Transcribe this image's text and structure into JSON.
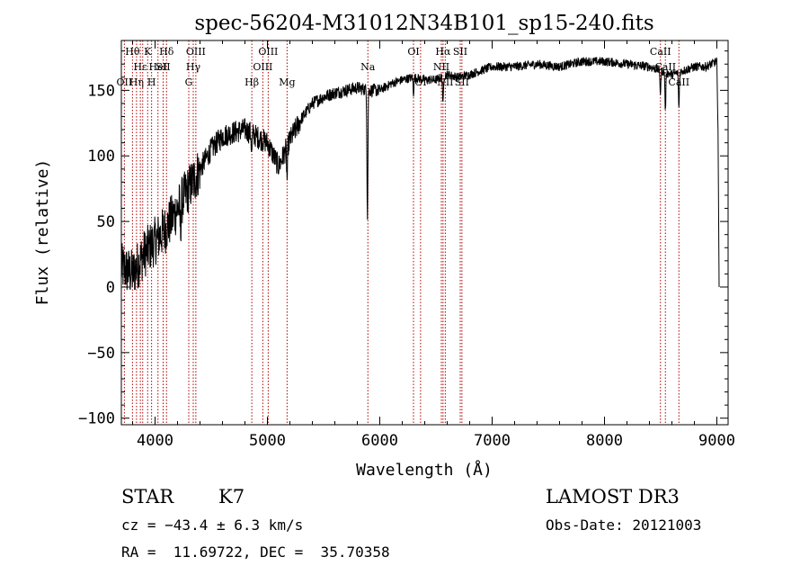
{
  "chart_data": {
    "type": "line",
    "title": "spec-56204-M31012N34B101_sp15-240.fits",
    "xlabel": "Wavelength (Å)",
    "ylabel": "Flux (relative)",
    "xlim": [
      3700,
      9100
    ],
    "ylim": [
      -105,
      188
    ],
    "x_ticks": [
      4000,
      5000,
      6000,
      7000,
      8000,
      9000
    ],
    "x_tick_labels": [
      "4000",
      "5000",
      "6000",
      "7000",
      "8000",
      "9000"
    ],
    "y_ticks": [
      -100,
      -50,
      0,
      50,
      100,
      150
    ],
    "y_tick_labels": [
      "−100",
      "−50",
      "0",
      "50",
      "100",
      "150"
    ],
    "spectrum_anchors": {
      "x": [
        3700,
        3800,
        3900,
        4000,
        4100,
        4200,
        4300,
        4400,
        4500,
        4600,
        4700,
        4800,
        4900,
        5000,
        5100,
        5200,
        5300,
        5400,
        5500,
        5600,
        5700,
        5800,
        5900,
        6000,
        6100,
        6200,
        6300,
        6400,
        6500,
        6600,
        6700,
        6800,
        6900,
        7000,
        7200,
        7400,
        7600,
        7800,
        8000,
        8200,
        8400,
        8500,
        8600,
        8700,
        8800,
        8900,
        9000,
        9010,
        9020
      ],
      "y": [
        15,
        10,
        25,
        35,
        45,
        60,
        75,
        90,
        105,
        115,
        118,
        120,
        115,
        110,
        92,
        112,
        128,
        140,
        145,
        148,
        150,
        152,
        150,
        150,
        155,
        158,
        160,
        158,
        158,
        162,
        160,
        162,
        165,
        168,
        168,
        170,
        168,
        172,
        172,
        170,
        168,
        165,
        162,
        165,
        168,
        168,
        172,
        120,
        0
      ]
    },
    "spectrum_absorption": [
      {
        "x": 5890,
        "depth": 95
      },
      {
        "x": 6563,
        "depth": 22
      },
      {
        "x": 5175,
        "depth": 25
      },
      {
        "x": 4860,
        "depth": 15
      },
      {
        "x": 8542,
        "depth": 30
      },
      {
        "x": 8662,
        "depth": 28
      },
      {
        "x": 8498,
        "depth": 18
      },
      {
        "x": 6300,
        "depth": 12
      },
      {
        "x": 4226,
        "depth": 20
      }
    ],
    "line_markers": [
      {
        "x": 3727,
        "label": "OII",
        "row": 2
      },
      {
        "x": 3799,
        "label": "Hθ",
        "row": 0
      },
      {
        "x": 3835,
        "label": "Hη",
        "row": 2
      },
      {
        "x": 3869,
        "label": "Hε",
        "row": 1
      },
      {
        "x": 3890,
        "label": "",
        "row": 1
      },
      {
        "x": 3934,
        "label": "K",
        "row": 0
      },
      {
        "x": 3969,
        "label": "H",
        "row": 2
      },
      {
        "x": 4026,
        "label": "HeI",
        "row": 1
      },
      {
        "x": 4072,
        "label": "SII",
        "row": 1
      },
      {
        "x": 4102,
        "label": "Hδ",
        "row": 0
      },
      {
        "x": 4300,
        "label": "G",
        "row": 2
      },
      {
        "x": 4340,
        "label": "Hγ",
        "row": 1
      },
      {
        "x": 4363,
        "label": "OIII",
        "row": 0
      },
      {
        "x": 4861,
        "label": "Hβ",
        "row": 2
      },
      {
        "x": 4959,
        "label": "OIII",
        "row": 1
      },
      {
        "x": 5007,
        "label": "OIII",
        "row": 0
      },
      {
        "x": 5175,
        "label": "Mg",
        "row": 2
      },
      {
        "x": 5894,
        "label": "Na",
        "row": 1
      },
      {
        "x": 6300,
        "label": "OI",
        "row": 0
      },
      {
        "x": 6363,
        "label": "OI",
        "row": 2
      },
      {
        "x": 6548,
        "label": "NII",
        "row": 1
      },
      {
        "x": 6563,
        "label": "Hα",
        "row": 0
      },
      {
        "x": 6583,
        "label": "NII",
        "row": 2
      },
      {
        "x": 6716,
        "label": "SII",
        "row": 0
      },
      {
        "x": 6731,
        "label": "SII",
        "row": 2
      },
      {
        "x": 8498,
        "label": "CaII",
        "row": 0
      },
      {
        "x": 8542,
        "label": "CaII",
        "row": 1
      },
      {
        "x": 8662,
        "label": "CaII",
        "row": 2
      }
    ]
  },
  "info": {
    "object_class": "STAR",
    "subclass": "K7",
    "redshift": "cz = −43.4 ± 6.3 km/s",
    "coords": "RA =  11.69722, DEC =  35.70358",
    "survey": "LAMOST DR3",
    "obs_date": "Obs-Date: 20121003"
  }
}
